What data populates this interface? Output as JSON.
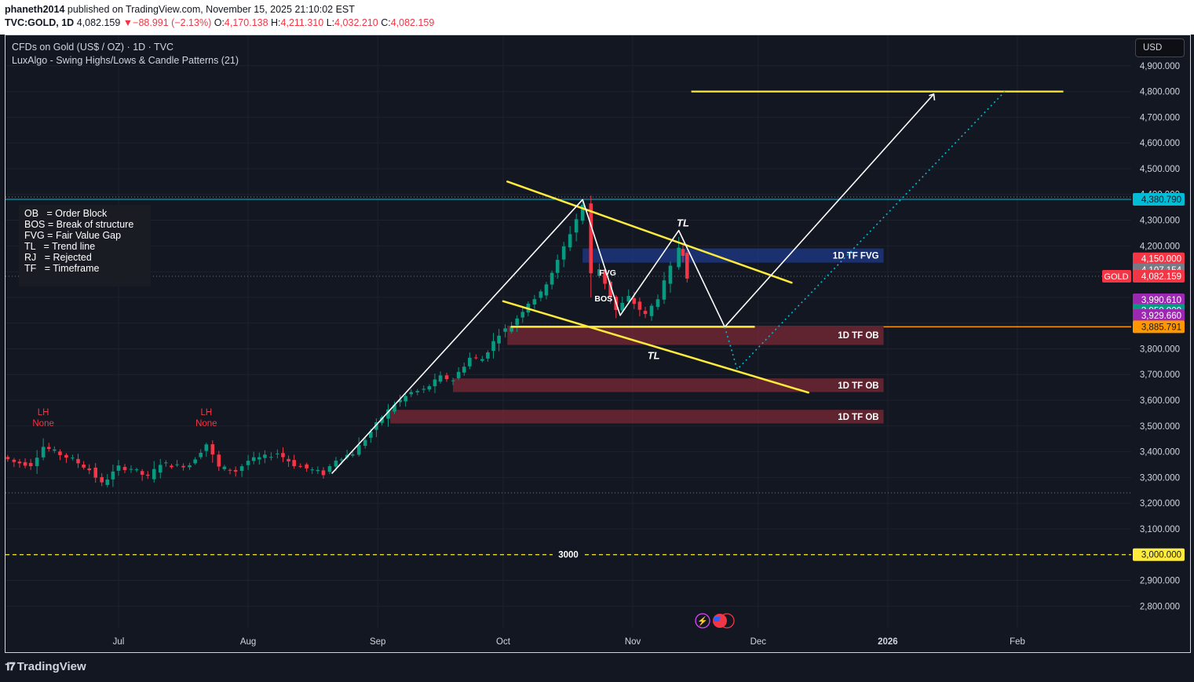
{
  "header": {
    "publisher": "phaneth2014",
    "published_text": "published on TradingView.com, November 15, 2025 21:10:02 EST",
    "symbol": "TVC:GOLD, 1D",
    "last": "4,082.159",
    "change": "−88.991 (−2.13%)",
    "o_label": "O:",
    "open": "4,170.138",
    "h_label": "H:",
    "high": "4,211.310",
    "l_label": "L:",
    "low": "4,032.210",
    "c_label": "C:",
    "close": "4,082.159"
  },
  "chart_title": "CFDs on Gold (US$ / OZ) · 1D · TVC",
  "indicator": "LuxAlgo - Swing Highs/Lows & Candle Patterns (21)",
  "currency": "USD",
  "legend": [
    "OB   = Order Block",
    "BOS = Break of structure",
    "FVG = Fair Value Gap",
    "TL   = Trend line",
    "RJ   = Rejected",
    "TF   = Timeframe"
  ],
  "brand": "TradingView",
  "chart_data": {
    "type": "candlestick",
    "y_ticks": [
      2800,
      2900,
      3000,
      3100,
      3200,
      3300,
      3400,
      3500,
      3600,
      3700,
      3800,
      3900,
      4000,
      4100,
      4200,
      4300,
      4400,
      4500,
      4600,
      4700,
      4800,
      4900
    ],
    "y_tick_labels": [
      "2,800.000",
      "2,900.000",
      "3,000.000",
      "3,100.000",
      "3,200.000",
      "3,300.000",
      "3,400.000",
      "3,500.000",
      "3,600.000",
      "3,700.000",
      "3,800.000",
      "3,900.000",
      "4,000.000",
      "4,100.000",
      "4,200.000",
      "4,300.000",
      "4,400.000",
      "4,500.000",
      "4,600.000",
      "4,700.000",
      "4,800.000",
      "4,900.000"
    ],
    "x_ticks": [
      {
        "label": "Jul",
        "date": "2025-07-01"
      },
      {
        "label": "Aug",
        "date": "2025-08-01"
      },
      {
        "label": "Sep",
        "date": "2025-09-01"
      },
      {
        "label": "Oct",
        "date": "2025-10-01"
      },
      {
        "label": "Nov",
        "date": "2025-11-01"
      },
      {
        "label": "Dec",
        "date": "2025-12-01"
      },
      {
        "label": "2026",
        "date": "2026-01-01"
      },
      {
        "label": "Feb",
        "date": "2026-02-01"
      }
    ],
    "ohlc_close_trace": [
      [
        "2025-06-03",
        3380
      ],
      [
        "2025-06-06",
        3360
      ],
      [
        "2025-06-10",
        3350
      ],
      [
        "2025-06-13",
        3420
      ],
      [
        "2025-06-17",
        3390
      ],
      [
        "2025-06-20",
        3370
      ],
      [
        "2025-06-24",
        3330
      ],
      [
        "2025-06-27",
        3275
      ],
      [
        "2025-07-01",
        3340
      ],
      [
        "2025-07-04",
        3335
      ],
      [
        "2025-07-08",
        3300
      ],
      [
        "2025-07-11",
        3355
      ],
      [
        "2025-07-15",
        3345
      ],
      [
        "2025-07-18",
        3350
      ],
      [
        "2025-07-22",
        3430
      ],
      [
        "2025-07-25",
        3340
      ],
      [
        "2025-07-29",
        3325
      ],
      [
        "2025-08-01",
        3365
      ],
      [
        "2025-08-05",
        3380
      ],
      [
        "2025-08-08",
        3395
      ],
      [
        "2025-08-12",
        3350
      ],
      [
        "2025-08-15",
        3335
      ],
      [
        "2025-08-19",
        3315
      ],
      [
        "2025-08-22",
        3370
      ],
      [
        "2025-08-26",
        3395
      ],
      [
        "2025-08-29",
        3450
      ],
      [
        "2025-09-02",
        3535
      ],
      [
        "2025-09-05",
        3585
      ],
      [
        "2025-09-09",
        3630
      ],
      [
        "2025-09-12",
        3640
      ],
      [
        "2025-09-16",
        3690
      ],
      [
        "2025-09-19",
        3680
      ],
      [
        "2025-09-23",
        3765
      ],
      [
        "2025-09-26",
        3760
      ],
      [
        "2025-09-30",
        3860
      ],
      [
        "2025-10-03",
        3890
      ],
      [
        "2025-10-07",
        3980
      ],
      [
        "2025-10-10",
        4015
      ],
      [
        "2025-10-14",
        4140
      ],
      [
        "2025-10-17",
        4250
      ],
      [
        "2025-10-20",
        4360
      ],
      [
        "2025-10-22",
        4090
      ],
      [
        "2025-10-24",
        4110
      ],
      [
        "2025-10-28",
        3950
      ],
      [
        "2025-10-31",
        4000
      ],
      [
        "2025-11-04",
        3930
      ],
      [
        "2025-11-07",
        4000
      ],
      [
        "2025-11-10",
        4115
      ],
      [
        "2025-11-12",
        4195
      ],
      [
        "2025-11-13",
        4170
      ],
      [
        "2025-11-14",
        4082
      ]
    ],
    "swing_labels": [
      {
        "label": "LH",
        "sub": "None",
        "date": "2025-06-13"
      },
      {
        "label": "LH",
        "sub": "None",
        "date": "2025-07-22"
      }
    ],
    "zones": [
      {
        "label": "1D TF FVG",
        "from": "2025-10-20",
        "to": "2025-12-31",
        "low": 4135,
        "high": 4190,
        "color": "#1e3a8a"
      },
      {
        "label": "1D TF OB",
        "from": "2025-10-02",
        "to": "2025-12-31",
        "low": 3815,
        "high": 3890,
        "color": "#7a2a35"
      },
      {
        "label": "1D TF OB",
        "from": "2025-09-19",
        "to": "2025-12-31",
        "low": 3632,
        "high": 3685,
        "color": "#7a2a35"
      },
      {
        "label": "1D TF OB",
        "from": "2025-09-04",
        "to": "2025-12-31",
        "low": 3510,
        "high": 3563,
        "color": "#7a2a35"
      }
    ],
    "annotations": [
      {
        "text": "TL",
        "date": "2025-11-13",
        "price": 4275
      },
      {
        "text": "TL",
        "date": "2025-11-06",
        "price": 3760
      },
      {
        "text": "FVG",
        "date": "2025-10-26",
        "price": 4085
      },
      {
        "text": "BOS",
        "date": "2025-10-25",
        "price": 3985
      },
      {
        "text": "3000",
        "date": "2025-09-18",
        "price": 3000
      }
    ],
    "horizontal_levels": [
      {
        "price": 4800,
        "style": "solid",
        "color": "#ffeb3b"
      },
      {
        "price": 3000,
        "style": "dashed",
        "color": "#ffeb3b",
        "label": "3000"
      },
      {
        "price": 3885.791,
        "style": "solid",
        "color": "#ff9800"
      },
      {
        "price": 4380.79,
        "style": "solid",
        "color": "#00bcd4"
      }
    ],
    "price_tags": [
      {
        "text": "4,380.790",
        "price": 4380.79,
        "bg": "#00bcd4",
        "fg": "#131722"
      },
      {
        "text": "4,150.000",
        "price": 4150,
        "bg": "#f23645",
        "fg": "#ffffff"
      },
      {
        "text": "4,107.154",
        "price": 4107.154,
        "bg": "#787b86",
        "fg": "#ffffff"
      },
      {
        "text": "4,082.159",
        "price": 4082.159,
        "bg": "#f23645",
        "fg": "#ffffff",
        "tag": "GOLD"
      },
      {
        "text": "3,990.610",
        "price": 3990.61,
        "bg": "#9c27b0",
        "fg": "#ffffff"
      },
      {
        "text": "3,950.000",
        "price": 3950,
        "bg": "#089981",
        "fg": "#ffffff"
      },
      {
        "text": "3,929.660",
        "price": 3929.66,
        "bg": "#9c27b0",
        "fg": "#ffffff"
      },
      {
        "text": "3,885.791",
        "price": 3885.791,
        "bg": "#ff9800",
        "fg": "#131722"
      },
      {
        "text": "3,000.000",
        "price": 3000,
        "bg": "#ffeb3b",
        "fg": "#131722"
      }
    ],
    "colors": {
      "up": "#089981",
      "down": "#f23645",
      "trendline": "#ffeb3b",
      "projection": "#ffffff",
      "alt_projection": "#00bcd4"
    }
  }
}
